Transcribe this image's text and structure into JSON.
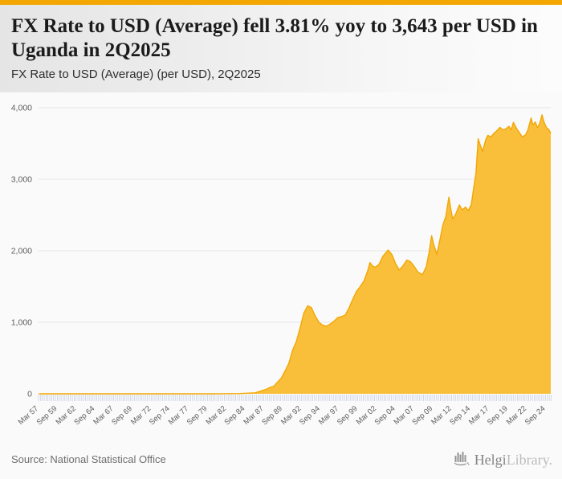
{
  "header": {
    "title": "FX Rate to USD (Average) fell 3.81% yoy to 3,643 per USD in Uganda in 2Q2025",
    "subtitle": "FX Rate to USD (Average) (per USD), 2Q2025"
  },
  "footer": {
    "source": "Source: National Statistical Office",
    "logo_primary": "Helgi",
    "logo_secondary": "Library."
  },
  "colors": {
    "accent_bar": "#F2A702",
    "area_fill": "#F9BF3B",
    "area_stroke": "#F2A702",
    "grid_color": "#e7e7e7",
    "minor_tick_color": "#c7d0e2",
    "axis_label_color": "#5e5e5e"
  },
  "chart_data": {
    "type": "area",
    "title": "FX Rate to USD (Average) (per USD), 2Q2025",
    "country": "Uganda",
    "unit": "UGX per USD",
    "latest": {
      "period": "2Q2025",
      "value": 3643,
      "yoy_change_pct": -3.81
    },
    "x_range": [
      1957.17,
      2025.42
    ],
    "ylim": [
      0,
      4000
    ],
    "grid": "horizontal",
    "frequency": "quarterly",
    "y_ticks": [
      0,
      1000,
      2000,
      3000,
      4000
    ],
    "y_tick_labels": [
      "0",
      "1,000",
      "2,000",
      "3,000",
      "4,000"
    ],
    "x_tick_labels": [
      "Mar 57",
      "Sep 59",
      "Mar 62",
      "Sep 64",
      "Mar 67",
      "Sep 69",
      "Mar 72",
      "Sep 74",
      "Mar 77",
      "Sep 79",
      "Mar 82",
      "Sep 84",
      "Mar 87",
      "Sep 89",
      "Mar 92",
      "Sep 94",
      "Mar 97",
      "Sep 99",
      "Mar 02",
      "Sep 04",
      "Mar 07",
      "Sep 09",
      "Mar 12",
      "Sep 14",
      "Mar 17",
      "Sep 19",
      "Mar 22",
      "Sep 24"
    ],
    "x_tick_interval_years": 2.5,
    "points": [
      [
        1957.2,
        0.07
      ],
      [
        1966.0,
        0.07
      ],
      [
        1971.0,
        0.07
      ],
      [
        1976.0,
        0.08
      ],
      [
        1980.0,
        0.08
      ],
      [
        1981.5,
        0.8
      ],
      [
        1984.0,
        3.6
      ],
      [
        1986.0,
        14
      ],
      [
        1987.4,
        60
      ],
      [
        1988.0,
        90
      ],
      [
        1988.5,
        106
      ],
      [
        1989.0,
        165
      ],
      [
        1989.5,
        223
      ],
      [
        1990.0,
        320
      ],
      [
        1990.5,
        428
      ],
      [
        1991.0,
        610
      ],
      [
        1991.5,
        734
      ],
      [
        1992.0,
        920
      ],
      [
        1992.5,
        1130
      ],
      [
        1993.0,
        1230
      ],
      [
        1993.5,
        1205
      ],
      [
        1994.0,
        1090
      ],
      [
        1994.5,
        1000
      ],
      [
        1995.0,
        960
      ],
      [
        1995.5,
        945
      ],
      [
        1996.0,
        975
      ],
      [
        1996.5,
        1015
      ],
      [
        1997.0,
        1065
      ],
      [
        1997.5,
        1080
      ],
      [
        1998.0,
        1100
      ],
      [
        1998.5,
        1200
      ],
      [
        1999.0,
        1320
      ],
      [
        1999.5,
        1430
      ],
      [
        2000.0,
        1500
      ],
      [
        2000.5,
        1580
      ],
      [
        2001.0,
        1720
      ],
      [
        2001.3,
        1835
      ],
      [
        2001.6,
        1790
      ],
      [
        2002.0,
        1770
      ],
      [
        2002.5,
        1810
      ],
      [
        2003.0,
        1920
      ],
      [
        2003.7,
        2010
      ],
      [
        2004.2,
        1950
      ],
      [
        2004.7,
        1820
      ],
      [
        2005.2,
        1730
      ],
      [
        2005.7,
        1790
      ],
      [
        2006.2,
        1870
      ],
      [
        2006.7,
        1845
      ],
      [
        2007.2,
        1780
      ],
      [
        2007.7,
        1700
      ],
      [
        2008.3,
        1665
      ],
      [
        2008.8,
        1780
      ],
      [
        2009.2,
        2000
      ],
      [
        2009.5,
        2210
      ],
      [
        2009.8,
        2080
      ],
      [
        2010.2,
        1950
      ],
      [
        2010.6,
        2150
      ],
      [
        2011.0,
        2360
      ],
      [
        2011.4,
        2480
      ],
      [
        2011.8,
        2750
      ],
      [
        2012.1,
        2560
      ],
      [
        2012.3,
        2445
      ],
      [
        2012.7,
        2510
      ],
      [
        2013.2,
        2640
      ],
      [
        2013.6,
        2570
      ],
      [
        2014.0,
        2610
      ],
      [
        2014.4,
        2560
      ],
      [
        2014.8,
        2650
      ],
      [
        2015.1,
        2880
      ],
      [
        2015.4,
        3080
      ],
      [
        2015.7,
        3565
      ],
      [
        2016.0,
        3470
      ],
      [
        2016.3,
        3390
      ],
      [
        2016.7,
        3550
      ],
      [
        2017.0,
        3615
      ],
      [
        2017.4,
        3590
      ],
      [
        2017.8,
        3640
      ],
      [
        2018.2,
        3680
      ],
      [
        2018.6,
        3725
      ],
      [
        2019.0,
        3690
      ],
      [
        2019.4,
        3705
      ],
      [
        2019.8,
        3740
      ],
      [
        2020.1,
        3690
      ],
      [
        2020.4,
        3795
      ],
      [
        2020.8,
        3710
      ],
      [
        2021.2,
        3650
      ],
      [
        2021.6,
        3590
      ],
      [
        2022.0,
        3620
      ],
      [
        2022.3,
        3680
      ],
      [
        2022.75,
        3855
      ],
      [
        2023.0,
        3760
      ],
      [
        2023.3,
        3800
      ],
      [
        2023.6,
        3720
      ],
      [
        2023.9,
        3780
      ],
      [
        2024.2,
        3900
      ],
      [
        2024.5,
        3790
      ],
      [
        2024.8,
        3720
      ],
      [
        2025.1,
        3695
      ],
      [
        2025.37,
        3643
      ]
    ]
  }
}
